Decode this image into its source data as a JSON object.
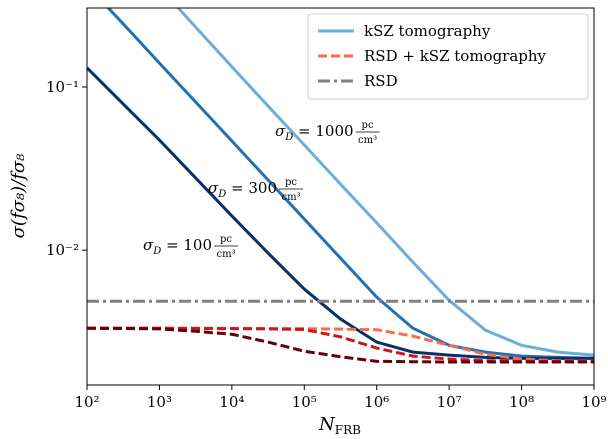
{
  "chart_data": {
    "type": "line",
    "xlabel": "N",
    "xlabel_sub": "FRB",
    "ylabel": "σ(fσ₈)/fσ₈",
    "xscale": "log",
    "yscale": "log",
    "xlim": [
      100,
      1000000000
    ],
    "ylim": [
      0.00149,
      0.305
    ],
    "xticks": [
      {
        "value": 100,
        "label": "10²"
      },
      {
        "value": 1000,
        "label": "10³"
      },
      {
        "value": 10000,
        "label": "10⁴"
      },
      {
        "value": 100000,
        "label": "10⁵"
      },
      {
        "value": 1000000,
        "label": "10⁶"
      },
      {
        "value": 10000000,
        "label": "10⁷"
      },
      {
        "value": 100000000,
        "label": "10⁸"
      },
      {
        "value": 1000000000,
        "label": "10⁹"
      }
    ],
    "yticks": [
      {
        "value": 0.01,
        "label": "10⁻²"
      },
      {
        "value": 0.1,
        "label": "10⁻¹"
      }
    ],
    "legend": "upper right",
    "x": [
      100,
      316,
      1000,
      3162,
      10000,
      31623,
      100000,
      316228,
      1000000,
      3162278,
      10000000,
      31622777,
      100000000,
      316227766,
      1000000000
    ],
    "series": [
      {
        "name": "kSZ tomography",
        "color": "#6baed6",
        "dash": "solid",
        "values": [
          null,
          null,
          0.41,
          0.233,
          0.133,
          0.0764,
          0.0441,
          0.0254,
          0.0147,
          0.00844,
          0.00493,
          0.00323,
          0.00261,
          0.00237,
          0.00227
        ]
      },
      {
        "color": "#2171b5",
        "dash": "solid",
        "values": [
          0.42,
          0.244,
          0.14,
          0.0809,
          0.0467,
          0.0269,
          0.0155,
          0.00893,
          0.00515,
          0.00332,
          0.00261,
          0.00237,
          0.00224,
          0.0022,
          0.00217
        ]
      },
      {
        "color": "#08306b",
        "dash": "solid",
        "values": [
          0.131,
          0.0787,
          0.0473,
          0.0277,
          0.0162,
          0.00959,
          0.00577,
          0.00378,
          0.00273,
          0.00237,
          0.00227,
          0.0022,
          0.00217,
          0.00217,
          0.00217
        ]
      },
      {
        "name": "RSD + kSZ tomography",
        "color": "#fb6a4a",
        "dash": "dashed",
        "values": [
          0.00332,
          0.00332,
          0.00332,
          0.00332,
          0.00331,
          0.0033,
          0.0033,
          0.00328,
          0.00325,
          0.00297,
          0.00261,
          0.0023,
          0.00215,
          0.0021,
          0.00208
        ]
      },
      {
        "color": "#cb181d",
        "dash": "dashed",
        "values": [
          0.00332,
          0.00332,
          0.00332,
          0.00331,
          0.0033,
          0.00329,
          0.00326,
          0.00294,
          0.00251,
          0.00224,
          0.00215,
          0.0021,
          0.00208,
          0.00208,
          0.00208
        ]
      },
      {
        "color": "#67000d",
        "dash": "dashed",
        "values": [
          0.00332,
          0.00331,
          0.00329,
          0.00318,
          0.00305,
          0.00273,
          0.0024,
          0.00222,
          0.00208,
          0.00207,
          0.00206,
          0.00206,
          0.00206,
          0.00206,
          0.00206
        ]
      },
      {
        "name": "RSD",
        "color": "#808080",
        "dash": "dashdot",
        "values": [
          0.00486,
          0.00486,
          0.00486,
          0.00486,
          0.00486,
          0.00486,
          0.00486,
          0.00486,
          0.00486,
          0.00486,
          0.00486,
          0.00486,
          0.00486,
          0.00486,
          0.00486
        ]
      }
    ],
    "annotations": [
      {
        "symbol": "σ",
        "sub": "D",
        "rest": " = 1000",
        "num": "pc",
        "den": "cm³"
      },
      {
        "symbol": "σ",
        "sub": "D",
        "rest": " = 300",
        "num": "pc",
        "den": "cm³"
      },
      {
        "symbol": "σ",
        "sub": "D",
        "rest": " = 100",
        "num": "pc",
        "den": "cm³"
      }
    ]
  }
}
